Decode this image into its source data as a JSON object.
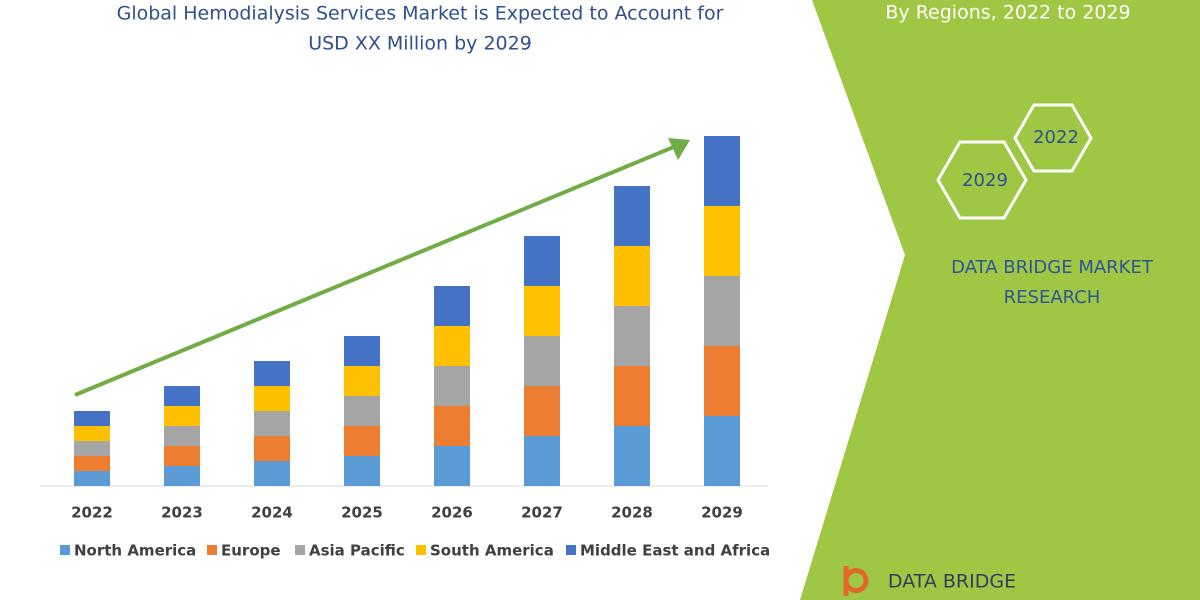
{
  "chart_data": {
    "type": "stacked_bar",
    "title": [
      "Global Hemodialysis Services Market is Expected to Account for",
      "USD XX Million by 2029"
    ],
    "categories": [
      "2022",
      "2023",
      "2024",
      "2025",
      "2026",
      "2027",
      "2028",
      "2029"
    ],
    "series": [
      {
        "name": "North America",
        "color": "#5b9bd5",
        "values": [
          15,
          20,
          25,
          30,
          40,
          50,
          60,
          70
        ]
      },
      {
        "name": "Europe",
        "color": "#ed7d31",
        "values": [
          15,
          20,
          25,
          30,
          40,
          50,
          60,
          70
        ]
      },
      {
        "name": "Asia Pacific",
        "color": "#a5a5a5",
        "values": [
          15,
          20,
          25,
          30,
          40,
          50,
          60,
          70
        ]
      },
      {
        "name": "South America",
        "color": "#ffc000",
        "values": [
          15,
          20,
          25,
          30,
          40,
          50,
          60,
          70
        ]
      },
      {
        "name": "Middle East and Africa",
        "color": "#4472c4",
        "values": [
          15,
          20,
          25,
          30,
          40,
          50,
          60,
          70
        ]
      }
    ]
  },
  "side_panel": {
    "heading": "By Regions, 2022 to 2029",
    "hex_labels": [
      "2022",
      "2029"
    ],
    "brand": [
      "DATA BRIDGE MARKET",
      "RESEARCH"
    ],
    "logo": "DATA BRIDGE"
  }
}
